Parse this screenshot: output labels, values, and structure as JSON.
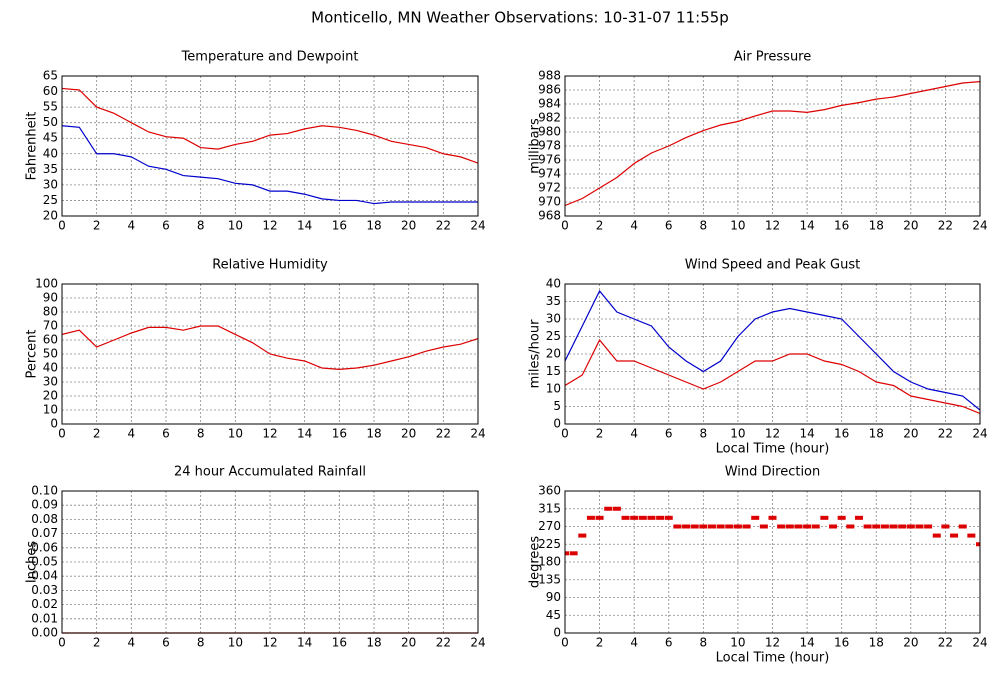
{
  "title": "Monticello, MN Weather Observations: 10-31-07 11:55p",
  "chart_data": [
    {
      "type": "line",
      "title": "Temperature and Dewpoint",
      "ylabel": "Fahrenheit",
      "x": [
        0,
        1,
        2,
        3,
        4,
        5,
        6,
        7,
        8,
        9,
        10,
        11,
        12,
        13,
        14,
        15,
        16,
        17,
        18,
        19,
        20,
        21,
        22,
        23,
        24
      ],
      "series": [
        {
          "color": "#dd0000",
          "values": [
            61,
            60.5,
            55,
            53,
            50,
            47,
            45.5,
            45,
            42,
            41.5,
            43,
            44,
            46,
            46.5,
            48,
            49,
            48.5,
            47.5,
            46,
            44,
            43,
            42,
            40,
            39,
            37
          ]
        },
        {
          "color": "#0000cc",
          "values": [
            49,
            48.5,
            40,
            40,
            39,
            36,
            35,
            33,
            32.5,
            32,
            30.5,
            30,
            28,
            28,
            27,
            25.5,
            25,
            25,
            24,
            24.5,
            24.5,
            24.5,
            24.5,
            24.5,
            24.5
          ]
        }
      ],
      "xlim": [
        0,
        24
      ],
      "xticks": [
        0,
        2,
        4,
        6,
        8,
        10,
        12,
        14,
        16,
        18,
        20,
        22,
        24
      ],
      "ylim": [
        20,
        65
      ],
      "yticks": [
        20,
        25,
        30,
        35,
        40,
        45,
        50,
        55,
        60,
        65
      ],
      "grid": true
    },
    {
      "type": "line",
      "title": "Air Pressure",
      "ylabel": "millibars",
      "x": [
        0,
        1,
        2,
        3,
        4,
        5,
        6,
        7,
        8,
        9,
        10,
        11,
        12,
        13,
        14,
        15,
        16,
        17,
        18,
        19,
        20,
        21,
        22,
        23,
        24
      ],
      "series": [
        {
          "color": "#dd0000",
          "values": [
            969.5,
            970.5,
            972,
            973.5,
            975.5,
            977,
            978,
            979.2,
            980.2,
            981,
            981.5,
            982.3,
            983,
            983,
            982.8,
            983.2,
            983.8,
            984.2,
            984.7,
            985,
            985.5,
            986,
            986.5,
            987,
            987.2
          ]
        }
      ],
      "xlim": [
        0,
        24
      ],
      "xticks": [
        0,
        2,
        4,
        6,
        8,
        10,
        12,
        14,
        16,
        18,
        20,
        22,
        24
      ],
      "ylim": [
        968,
        988
      ],
      "yticks": [
        968,
        970,
        972,
        974,
        976,
        978,
        980,
        982,
        984,
        986,
        988
      ],
      "grid": true
    },
    {
      "type": "line",
      "title": "Relative Humidity",
      "ylabel": "Percent",
      "x": [
        0,
        1,
        2,
        3,
        4,
        5,
        6,
        7,
        8,
        9,
        10,
        11,
        12,
        13,
        14,
        15,
        16,
        17,
        18,
        19,
        20,
        21,
        22,
        23,
        24
      ],
      "series": [
        {
          "color": "#dd0000",
          "values": [
            64,
            67,
            55,
            60,
            65,
            69,
            69,
            67,
            70,
            70,
            64,
            58,
            50,
            47,
            45,
            40,
            39,
            40,
            42,
            45,
            48,
            52,
            55,
            57,
            61
          ]
        }
      ],
      "xlim": [
        0,
        24
      ],
      "xticks": [
        0,
        2,
        4,
        6,
        8,
        10,
        12,
        14,
        16,
        18,
        20,
        22,
        24
      ],
      "ylim": [
        0,
        100
      ],
      "yticks": [
        0,
        10,
        20,
        30,
        40,
        50,
        60,
        70,
        80,
        90,
        100
      ],
      "grid": true
    },
    {
      "type": "line",
      "title": "Wind Speed and Peak Gust",
      "ylabel": "miles/hour",
      "xlabel": "Local Time (hour)",
      "x": [
        0,
        1,
        2,
        3,
        4,
        5,
        6,
        7,
        8,
        9,
        10,
        11,
        12,
        13,
        14,
        15,
        16,
        17,
        18,
        19,
        20,
        21,
        22,
        23,
        24
      ],
      "series": [
        {
          "color": "#0000cc",
          "values": [
            18,
            28,
            38,
            32,
            30,
            28,
            22,
            18,
            15,
            18,
            25,
            30,
            32,
            33,
            32,
            31,
            30,
            25,
            20,
            15,
            12,
            10,
            9,
            8,
            4
          ]
        },
        {
          "color": "#dd0000",
          "values": [
            11,
            14,
            24,
            18,
            18,
            16,
            14,
            12,
            10,
            12,
            15,
            18,
            18,
            20,
            20,
            18,
            17,
            15,
            12,
            11,
            8,
            7,
            6,
            5,
            3
          ]
        }
      ],
      "xlim": [
        0,
        24
      ],
      "xticks": [
        0,
        2,
        4,
        6,
        8,
        10,
        12,
        14,
        16,
        18,
        20,
        22,
        24
      ],
      "ylim": [
        0,
        40
      ],
      "yticks": [
        0,
        5,
        10,
        15,
        20,
        25,
        30,
        35,
        40
      ],
      "grid": true
    },
    {
      "type": "line",
      "title": "24 hour Accumulated Rainfall",
      "ylabel": "Inches",
      "x": [
        0,
        24
      ],
      "series": [
        {
          "color": "#dd0000",
          "values": [
            0,
            0
          ]
        }
      ],
      "xlim": [
        0,
        24
      ],
      "xticks": [
        0,
        2,
        4,
        6,
        8,
        10,
        12,
        14,
        16,
        18,
        20,
        22,
        24
      ],
      "ylim": [
        0,
        0.1
      ],
      "yticks": [
        {
          "value": 0,
          "label": "0.00"
        },
        {
          "value": 0.01,
          "label": "0.01"
        },
        {
          "value": 0.02,
          "label": "0.02"
        },
        {
          "value": 0.03,
          "label": "0.03"
        },
        {
          "value": 0.04,
          "label": "0.04"
        },
        {
          "value": 0.05,
          "label": "0.05"
        },
        {
          "value": 0.06,
          "label": "0.06"
        },
        {
          "value": 0.07,
          "label": "0.07"
        },
        {
          "value": 0.08,
          "label": "0.08"
        },
        {
          "value": 0.09,
          "label": "0.09"
        },
        {
          "value": 0.1,
          "label": "0.10"
        }
      ],
      "grid": true
    },
    {
      "type": "scatter",
      "title": "Wind Direction",
      "ylabel": "degrees",
      "xlabel": "Local Time (hour)",
      "x": [
        0,
        0.5,
        1,
        1.5,
        2,
        2.5,
        3,
        3.5,
        4,
        4.5,
        5,
        5.5,
        6,
        6.5,
        7,
        7.5,
        8,
        8.5,
        9,
        9.5,
        10,
        10.5,
        11,
        11.5,
        12,
        12.5,
        13,
        13.5,
        14,
        14.5,
        15,
        15.5,
        16,
        16.5,
        17,
        17.5,
        18,
        18.5,
        19,
        19.5,
        20,
        20.5,
        21,
        21.5,
        22,
        22.5,
        23,
        23.5,
        24
      ],
      "series": [
        {
          "color": "#dd0000",
          "values": [
            202,
            202,
            247,
            292,
            292,
            315,
            315,
            292,
            292,
            292,
            292,
            292,
            292,
            270,
            270,
            270,
            270,
            270,
            270,
            270,
            270,
            270,
            292,
            270,
            292,
            270,
            270,
            270,
            270,
            270,
            292,
            270,
            292,
            270,
            292,
            270,
            270,
            270,
            270,
            270,
            270,
            270,
            270,
            247,
            270,
            247,
            270,
            247,
            225
          ]
        }
      ],
      "xlim": [
        0,
        24
      ],
      "xticks": [
        0,
        2,
        4,
        6,
        8,
        10,
        12,
        14,
        16,
        18,
        20,
        22,
        24
      ],
      "ylim": [
        0,
        360
      ],
      "yticks": [
        0,
        45,
        90,
        135,
        180,
        225,
        270,
        315,
        360
      ],
      "grid": true
    }
  ]
}
